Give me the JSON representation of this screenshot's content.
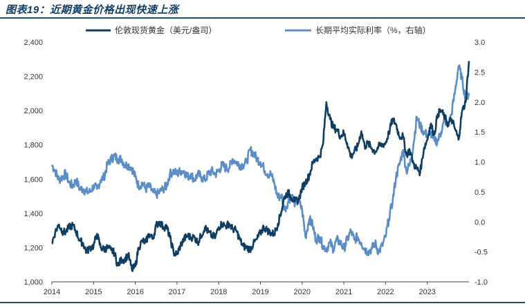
{
  "figure": {
    "title": "图表19：近期黄金价格出现快速上涨"
  },
  "colors": {
    "gold": "#0f3e63",
    "rate": "#5b8ec7",
    "axis": "#444444",
    "rule": "#1a4d7a"
  },
  "chart_data": {
    "type": "line",
    "title": "图表19：近期黄金价格出现快速上涨",
    "xlabel": "",
    "ylabel": "",
    "x_start": 2014.0,
    "x_end": 2024.0,
    "x_ticks": [
      "2014",
      "2015",
      "2016",
      "2017",
      "2018",
      "2019",
      "2020",
      "2021",
      "2022",
      "2023"
    ],
    "y_left": {
      "min": 1000,
      "max": 2400,
      "step": 200,
      "ticks": [
        "1,000",
        "1,200",
        "1,400",
        "1,600",
        "1,800",
        "2,000",
        "2,200",
        "2,400"
      ]
    },
    "y_right": {
      "min": -1.0,
      "max": 3.0,
      "step": 0.5,
      "ticks": [
        "-1.0",
        "-0.5",
        "0.0",
        "0.5",
        "1.0",
        "1.5",
        "2.0",
        "2.5",
        "3.0"
      ]
    },
    "legend_position": "top",
    "series": [
      {
        "name": "伦敦现货黄金（美元/盎司）",
        "axis": "left",
        "points": [
          [
            2014.0,
            1225
          ],
          [
            2014.08,
            1290
          ],
          [
            2014.17,
            1335
          ],
          [
            2014.25,
            1295
          ],
          [
            2014.33,
            1290
          ],
          [
            2014.42,
            1320
          ],
          [
            2014.5,
            1330
          ],
          [
            2014.58,
            1295
          ],
          [
            2014.67,
            1240
          ],
          [
            2014.75,
            1225
          ],
          [
            2014.83,
            1175
          ],
          [
            2014.92,
            1200
          ],
          [
            2015.0,
            1210
          ],
          [
            2015.08,
            1280
          ],
          [
            2015.17,
            1200
          ],
          [
            2015.25,
            1190
          ],
          [
            2015.33,
            1200
          ],
          [
            2015.42,
            1185
          ],
          [
            2015.5,
            1170
          ],
          [
            2015.58,
            1095
          ],
          [
            2015.67,
            1130
          ],
          [
            2015.75,
            1130
          ],
          [
            2015.83,
            1160
          ],
          [
            2015.92,
            1070
          ],
          [
            2016.0,
            1090
          ],
          [
            2016.08,
            1200
          ],
          [
            2016.17,
            1240
          ],
          [
            2016.25,
            1230
          ],
          [
            2016.33,
            1280
          ],
          [
            2016.42,
            1250
          ],
          [
            2016.5,
            1330
          ],
          [
            2016.58,
            1350
          ],
          [
            2016.67,
            1320
          ],
          [
            2016.75,
            1320
          ],
          [
            2016.83,
            1260
          ],
          [
            2016.92,
            1170
          ],
          [
            2017.0,
            1160
          ],
          [
            2017.08,
            1210
          ],
          [
            2017.17,
            1250
          ],
          [
            2017.25,
            1270
          ],
          [
            2017.33,
            1260
          ],
          [
            2017.42,
            1260
          ],
          [
            2017.5,
            1230
          ],
          [
            2017.58,
            1270
          ],
          [
            2017.67,
            1320
          ],
          [
            2017.75,
            1290
          ],
          [
            2017.83,
            1270
          ],
          [
            2017.92,
            1260
          ],
          [
            2018.0,
            1320
          ],
          [
            2018.08,
            1340
          ],
          [
            2018.17,
            1325
          ],
          [
            2018.25,
            1340
          ],
          [
            2018.33,
            1310
          ],
          [
            2018.42,
            1300
          ],
          [
            2018.5,
            1250
          ],
          [
            2018.58,
            1210
          ],
          [
            2018.67,
            1200
          ],
          [
            2018.75,
            1190
          ],
          [
            2018.83,
            1220
          ],
          [
            2018.92,
            1250
          ],
          [
            2019.0,
            1285
          ],
          [
            2019.08,
            1320
          ],
          [
            2019.17,
            1300
          ],
          [
            2019.25,
            1285
          ],
          [
            2019.33,
            1280
          ],
          [
            2019.42,
            1340
          ],
          [
            2019.5,
            1410
          ],
          [
            2019.58,
            1500
          ],
          [
            2019.67,
            1520
          ],
          [
            2019.75,
            1490
          ],
          [
            2019.83,
            1470
          ],
          [
            2019.92,
            1480
          ],
          [
            2020.0,
            1550
          ],
          [
            2020.08,
            1580
          ],
          [
            2020.17,
            1620
          ],
          [
            2020.25,
            1690
          ],
          [
            2020.33,
            1720
          ],
          [
            2020.42,
            1730
          ],
          [
            2020.5,
            1800
          ],
          [
            2020.58,
            2050
          ],
          [
            2020.67,
            1950
          ],
          [
            2020.75,
            1900
          ],
          [
            2020.83,
            1890
          ],
          [
            2020.92,
            1850
          ],
          [
            2021.0,
            1870
          ],
          [
            2021.08,
            1810
          ],
          [
            2021.17,
            1730
          ],
          [
            2021.25,
            1760
          ],
          [
            2021.33,
            1790
          ],
          [
            2021.42,
            1880
          ],
          [
            2021.5,
            1790
          ],
          [
            2021.58,
            1810
          ],
          [
            2021.67,
            1780
          ],
          [
            2021.75,
            1760
          ],
          [
            2021.83,
            1790
          ],
          [
            2021.92,
            1800
          ],
          [
            2022.0,
            1810
          ],
          [
            2022.08,
            1870
          ],
          [
            2022.17,
            1950
          ],
          [
            2022.25,
            1920
          ],
          [
            2022.33,
            1850
          ],
          [
            2022.42,
            1850
          ],
          [
            2022.5,
            1740
          ],
          [
            2022.58,
            1770
          ],
          [
            2022.67,
            1690
          ],
          [
            2022.75,
            1660
          ],
          [
            2022.83,
            1640
          ],
          [
            2022.92,
            1780
          ],
          [
            2023.0,
            1830
          ],
          [
            2023.08,
            1920
          ],
          [
            2023.17,
            1860
          ],
          [
            2023.25,
            1980
          ],
          [
            2023.33,
            2000
          ],
          [
            2023.42,
            1960
          ],
          [
            2023.5,
            1920
          ],
          [
            2023.58,
            1950
          ],
          [
            2023.67,
            1890
          ],
          [
            2023.75,
            1830
          ],
          [
            2023.83,
            1990
          ],
          [
            2023.92,
            2050
          ],
          [
            2024.0,
            2290
          ]
        ]
      },
      {
        "name": "长期平均实际利率（%，右轴）",
        "axis": "right",
        "points": [
          [
            2014.0,
            0.95
          ],
          [
            2014.08,
            0.85
          ],
          [
            2014.17,
            0.7
          ],
          [
            2014.25,
            0.75
          ],
          [
            2014.33,
            0.8
          ],
          [
            2014.42,
            0.65
          ],
          [
            2014.5,
            0.6
          ],
          [
            2014.58,
            0.7
          ],
          [
            2014.67,
            0.55
          ],
          [
            2014.75,
            0.55
          ],
          [
            2014.83,
            0.5
          ],
          [
            2014.92,
            0.5
          ],
          [
            2015.0,
            0.6
          ],
          [
            2015.08,
            0.55
          ],
          [
            2015.17,
            0.7
          ],
          [
            2015.25,
            0.75
          ],
          [
            2015.33,
            0.95
          ],
          [
            2015.42,
            1.05
          ],
          [
            2015.5,
            1.1
          ],
          [
            2015.58,
            1.05
          ],
          [
            2015.67,
            1.05
          ],
          [
            2015.75,
            0.95
          ],
          [
            2015.83,
            0.95
          ],
          [
            2015.92,
            0.9
          ],
          [
            2016.0,
            0.75
          ],
          [
            2016.08,
            0.6
          ],
          [
            2016.17,
            0.65
          ],
          [
            2016.25,
            0.55
          ],
          [
            2016.33,
            0.6
          ],
          [
            2016.42,
            0.5
          ],
          [
            2016.5,
            0.45
          ],
          [
            2016.58,
            0.5
          ],
          [
            2016.67,
            0.55
          ],
          [
            2016.75,
            0.6
          ],
          [
            2016.83,
            0.8
          ],
          [
            2016.92,
            0.85
          ],
          [
            2017.0,
            0.8
          ],
          [
            2017.08,
            0.85
          ],
          [
            2017.17,
            0.85
          ],
          [
            2017.25,
            0.75
          ],
          [
            2017.33,
            0.8
          ],
          [
            2017.42,
            0.7
          ],
          [
            2017.5,
            0.8
          ],
          [
            2017.58,
            0.75
          ],
          [
            2017.67,
            0.7
          ],
          [
            2017.75,
            0.8
          ],
          [
            2017.83,
            0.85
          ],
          [
            2017.92,
            0.8
          ],
          [
            2018.0,
            0.85
          ],
          [
            2018.08,
            0.95
          ],
          [
            2018.17,
            0.9
          ],
          [
            2018.25,
            0.9
          ],
          [
            2018.33,
            1.05
          ],
          [
            2018.42,
            1.0
          ],
          [
            2018.5,
            0.95
          ],
          [
            2018.58,
            0.95
          ],
          [
            2018.67,
            1.0
          ],
          [
            2018.75,
            1.2
          ],
          [
            2018.83,
            1.15
          ],
          [
            2018.92,
            1.05
          ],
          [
            2019.0,
            1.0
          ],
          [
            2019.08,
            0.9
          ],
          [
            2019.17,
            0.8
          ],
          [
            2019.25,
            0.8
          ],
          [
            2019.33,
            0.65
          ],
          [
            2019.42,
            0.4
          ],
          [
            2019.5,
            0.45
          ],
          [
            2019.58,
            0.2
          ],
          [
            2019.67,
            0.35
          ],
          [
            2019.75,
            0.45
          ],
          [
            2019.83,
            0.3
          ],
          [
            2019.92,
            0.35
          ],
          [
            2020.0,
            0.2
          ],
          [
            2020.08,
            -0.25
          ],
          [
            2020.17,
            0.05
          ],
          [
            2020.25,
            -0.05
          ],
          [
            2020.33,
            -0.3
          ],
          [
            2020.42,
            -0.25
          ],
          [
            2020.5,
            -0.4
          ],
          [
            2020.58,
            -0.45
          ],
          [
            2020.67,
            -0.35
          ],
          [
            2020.75,
            -0.45
          ],
          [
            2020.83,
            -0.3
          ],
          [
            2020.92,
            -0.35
          ],
          [
            2021.0,
            -0.45
          ],
          [
            2021.08,
            -0.3
          ],
          [
            2021.17,
            -0.15
          ],
          [
            2021.25,
            -0.3
          ],
          [
            2021.33,
            -0.25
          ],
          [
            2021.42,
            -0.35
          ],
          [
            2021.5,
            -0.45
          ],
          [
            2021.58,
            -0.5
          ],
          [
            2021.67,
            -0.45
          ],
          [
            2021.75,
            -0.35
          ],
          [
            2021.83,
            -0.5
          ],
          [
            2021.92,
            -0.4
          ],
          [
            2022.0,
            -0.25
          ],
          [
            2022.08,
            0.05
          ],
          [
            2022.17,
            0.35
          ],
          [
            2022.25,
            0.75
          ],
          [
            2022.33,
            0.95
          ],
          [
            2022.42,
            1.2
          ],
          [
            2022.5,
            0.85
          ],
          [
            2022.58,
            0.95
          ],
          [
            2022.67,
            1.3
          ],
          [
            2022.75,
            1.75
          ],
          [
            2022.83,
            1.6
          ],
          [
            2022.92,
            1.5
          ],
          [
            2023.0,
            1.45
          ],
          [
            2023.08,
            1.5
          ],
          [
            2023.17,
            1.35
          ],
          [
            2023.25,
            1.35
          ],
          [
            2023.33,
            1.5
          ],
          [
            2023.42,
            1.7
          ],
          [
            2023.5,
            1.6
          ],
          [
            2023.58,
            1.8
          ],
          [
            2023.67,
            2.2
          ],
          [
            2023.75,
            2.6
          ],
          [
            2023.83,
            2.4
          ],
          [
            2023.92,
            2.05
          ],
          [
            2024.0,
            2.15
          ]
        ]
      }
    ]
  }
}
